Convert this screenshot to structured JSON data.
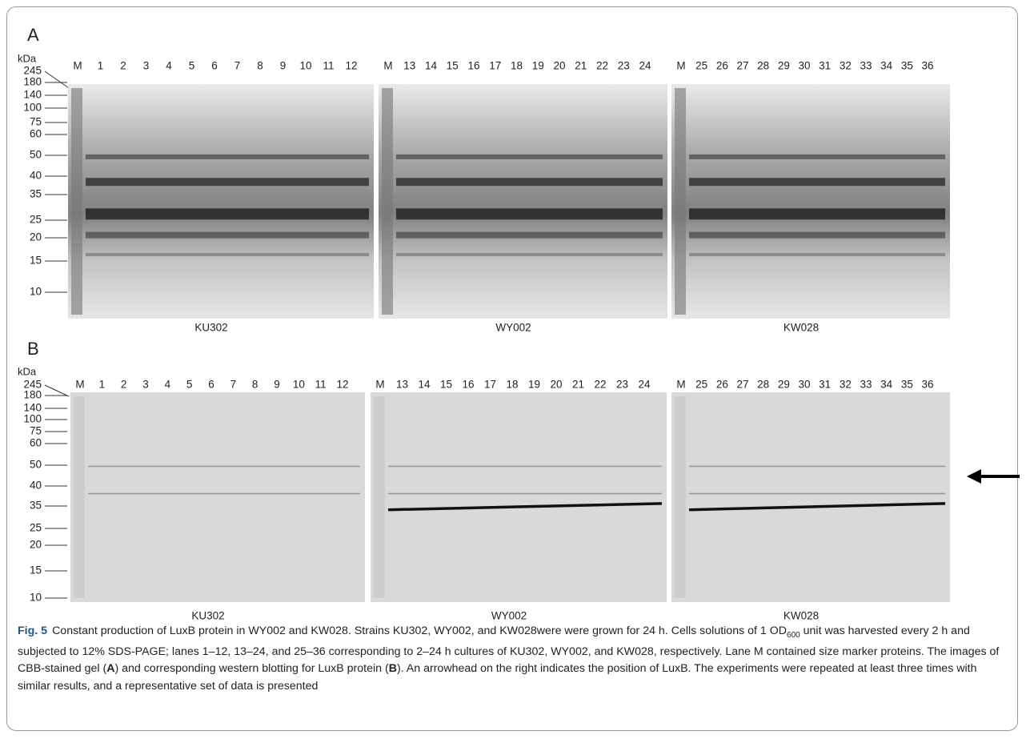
{
  "panels": [
    {
      "label": "A",
      "unit": "kDa",
      "markers": [
        "245",
        "180",
        "140",
        "100",
        "75",
        "60",
        "50",
        "40",
        "35",
        "25",
        "20",
        "15",
        "10"
      ],
      "groups": [
        {
          "lanes": [
            "M",
            "1",
            "2",
            "3",
            "4",
            "5",
            "6",
            "7",
            "8",
            "9",
            "10",
            "11",
            "12"
          ],
          "strain": "KU302"
        },
        {
          "lanes": [
            "M",
            "13",
            "14",
            "15",
            "16",
            "17",
            "18",
            "19",
            "20",
            "21",
            "22",
            "23",
            "24"
          ],
          "strain": "WY002"
        },
        {
          "lanes": [
            "M",
            "25",
            "26",
            "27",
            "28",
            "29",
            "30",
            "31",
            "32",
            "33",
            "34",
            "35",
            "36"
          ],
          "strain": "KW028"
        }
      ]
    },
    {
      "label": "B",
      "unit": "kDa",
      "markers": [
        "245",
        "180",
        "140",
        "100",
        "75",
        "60",
        "50",
        "40",
        "35",
        "25",
        "20",
        "15",
        "10"
      ],
      "groups": [
        {
          "lanes": [
            "M",
            "1",
            "2",
            "3",
            "4",
            "5",
            "6",
            "7",
            "8",
            "9",
            "10",
            "11",
            "12"
          ],
          "strain": "KU302"
        },
        {
          "lanes": [
            "M",
            "13",
            "14",
            "15",
            "16",
            "17",
            "18",
            "19",
            "20",
            "21",
            "22",
            "23",
            "24"
          ],
          "strain": "WY002"
        },
        {
          "lanes": [
            "M",
            "25",
            "26",
            "27",
            "28",
            "29",
            "30",
            "31",
            "32",
            "33",
            "34",
            "35",
            "36"
          ],
          "strain": "KW028"
        }
      ]
    }
  ],
  "caption": {
    "label": "Fig. 5",
    "segments": [
      "Constant production of LuxB protein in WY002 and KW028. Strains KU302, WY002, and KW028were were grown for 24 h. Cells solutions of 1 OD",
      "600",
      " unit was harvested every 2 h and subjected to 12% SDS-PAGE; lanes 1–12, 13–24, and 25–36 corresponding to 2–24 h cultures of KU302, WY002, and KW028, respectively. Lane M contained size marker proteins. The images of CBB-stained gel (",
      "A",
      ") and corresponding western blotting for LuxB protein (",
      "B",
      "). An arrowhead on the right indicates the position of LuxB. The experiments were repeated at least three times with similar results, and a representative set of data is presented"
    ]
  }
}
